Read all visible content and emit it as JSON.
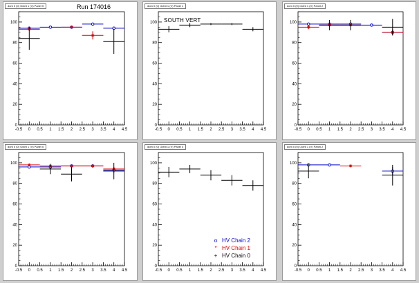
{
  "run_label": "Run 174016",
  "region_label": "SOUTH VERT",
  "legend": [
    {
      "label": "HV Chain 2",
      "symbol": "o",
      "color": "#0000cc"
    },
    {
      "label": "HV Chain 1",
      "symbol": "*",
      "color": "#dd0000"
    },
    {
      "label": "HV Chain 0",
      "symbol": "+",
      "color": "#000000"
    }
  ],
  "colors": {
    "chain2": "#0000cc",
    "chain1": "#dd0000",
    "chain0": "#000000"
  },
  "chart_data": [
    {
      "type": "scatter",
      "title": "dom 0 (0) Octnt 1 (V) Panel 0",
      "xlim": [
        -0.5,
        4.5
      ],
      "ylim": [
        0,
        110
      ],
      "xticks": [
        -0.5,
        0,
        0.5,
        1,
        1.5,
        2,
        2.5,
        3,
        3.5,
        4,
        4.5
      ],
      "yticks": [
        0,
        20,
        40,
        60,
        80,
        100
      ],
      "series": [
        {
          "chain": 2,
          "points": [
            {
              "x": 0,
              "y": 94,
              "err": 1
            },
            {
              "x": 1,
              "y": 95,
              "err": 1
            },
            {
              "x": 2,
              "y": 95,
              "err": 1
            },
            {
              "x": 3,
              "y": 98,
              "err": 1
            },
            {
              "x": 4,
              "y": 94,
              "err": 1
            }
          ]
        },
        {
          "chain": 1,
          "points": [
            {
              "x": 0,
              "y": 93,
              "err": 1
            },
            {
              "x": 2,
              "y": 95,
              "err": 1
            },
            {
              "x": 3,
              "y": 87,
              "err": 4
            }
          ]
        },
        {
          "chain": 0,
          "points": [
            {
              "x": 0,
              "y": 84,
              "err": 11
            },
            {
              "x": 4,
              "y": 81,
              "err": 12
            }
          ]
        }
      ]
    },
    {
      "type": "scatter",
      "title": "dom 0 (0) Octnt 1 (V) Panel 1",
      "xlim": [
        -0.5,
        4.5
      ],
      "ylim": [
        0,
        110
      ],
      "xticks": [
        -0.5,
        0,
        0.5,
        1,
        1.5,
        2,
        2.5,
        3,
        3.5,
        4,
        4.5
      ],
      "yticks": [
        0,
        20,
        40,
        60,
        80,
        100
      ],
      "series": [
        {
          "chain": 0,
          "points": [
            {
              "x": 0,
              "y": 93,
              "err": 3
            },
            {
              "x": 1,
              "y": 97,
              "err": 2
            },
            {
              "x": 2,
              "y": 98,
              "err": 1
            },
            {
              "x": 3,
              "y": 98,
              "err": 1
            },
            {
              "x": 4,
              "y": 93,
              "err": 2
            }
          ]
        }
      ]
    },
    {
      "type": "scatter",
      "title": "dom 0 (0) Octnt 1 (V) Panel 2",
      "xlim": [
        -0.5,
        4.5
      ],
      "ylim": [
        0,
        110
      ],
      "xticks": [
        -0.5,
        0,
        0.5,
        1,
        1.5,
        2,
        2.5,
        3,
        3.5,
        4,
        4.5
      ],
      "yticks": [
        0,
        20,
        40,
        60,
        80,
        100
      ],
      "series": [
        {
          "chain": 2,
          "points": [
            {
              "x": 0,
              "y": 98,
              "err": 1
            },
            {
              "x": 1,
              "y": 98,
              "err": 1
            },
            {
              "x": 2,
              "y": 98,
              "err": 1
            },
            {
              "x": 3,
              "y": 97,
              "err": 1
            },
            {
              "x": 4,
              "y": 90,
              "err": 3
            }
          ]
        },
        {
          "chain": 1,
          "points": [
            {
              "x": 0,
              "y": 95,
              "err": 2
            },
            {
              "x": 1,
              "y": 97,
              "err": 1
            },
            {
              "x": 2,
              "y": 97,
              "err": 1
            },
            {
              "x": 4,
              "y": 90,
              "err": 2
            }
          ]
        },
        {
          "chain": 0,
          "points": [
            {
              "x": 1,
              "y": 97,
              "err": 5
            },
            {
              "x": 2,
              "y": 97,
              "err": 5
            },
            {
              "x": 4,
              "y": 95,
              "err": 8
            }
          ]
        }
      ]
    },
    {
      "type": "scatter",
      "title": "dom 0 (0) Octnt 1 (V) Panel 0",
      "xlim": [
        -0.5,
        4.5
      ],
      "ylim": [
        0,
        110
      ],
      "xticks": [
        -0.5,
        0,
        0.5,
        1,
        1.5,
        2,
        2.5,
        3,
        3.5,
        4,
        4.5
      ],
      "yticks": [
        0,
        20,
        40,
        60,
        80,
        100
      ],
      "series": [
        {
          "chain": 2,
          "points": [
            {
              "x": 0,
              "y": 96,
              "err": 1
            },
            {
              "x": 1,
              "y": 96,
              "err": 2
            },
            {
              "x": 2,
              "y": 97,
              "err": 1
            },
            {
              "x": 3,
              "y": 97,
              "err": 1
            },
            {
              "x": 4,
              "y": 93,
              "err": 3
            }
          ]
        },
        {
          "chain": 1,
          "points": [
            {
              "x": 0,
              "y": 98,
              "err": 1
            },
            {
              "x": 1,
              "y": 97,
              "err": 1
            },
            {
              "x": 2,
              "y": 97,
              "err": 1
            },
            {
              "x": 3,
              "y": 97,
              "err": 1
            },
            {
              "x": 4,
              "y": 94,
              "err": 2
            }
          ]
        },
        {
          "chain": 0,
          "points": [
            {
              "x": 1,
              "y": 94,
              "err": 5
            },
            {
              "x": 2,
              "y": 89,
              "err": 7
            },
            {
              "x": 4,
              "y": 92,
              "err": 8
            }
          ]
        }
      ]
    },
    {
      "type": "scatter",
      "title": "dom 0 (0) Octnt 1 (V) Panel 4",
      "xlim": [
        -0.5,
        4.5
      ],
      "ylim": [
        0,
        110
      ],
      "xticks": [
        -0.5,
        0,
        0.5,
        1,
        1.5,
        2,
        2.5,
        3,
        3.5,
        4,
        4.5
      ],
      "yticks": [
        0,
        20,
        40,
        60,
        80,
        100
      ],
      "series": [
        {
          "chain": 0,
          "points": [
            {
              "x": 0,
              "y": 91,
              "err": 5
            },
            {
              "x": 1,
              "y": 94,
              "err": 4
            },
            {
              "x": 2,
              "y": 88,
              "err": 5
            },
            {
              "x": 3,
              "y": 83,
              "err": 5
            },
            {
              "x": 4,
              "y": 78,
              "err": 5
            }
          ]
        }
      ]
    },
    {
      "type": "scatter",
      "title": "dom 0 (0) Octnt 1 (V) Panel 2",
      "xlim": [
        -0.5,
        4.5
      ],
      "ylim": [
        0,
        110
      ],
      "xticks": [
        -0.5,
        0,
        0.5,
        1,
        1.5,
        2,
        2.5,
        3,
        3.5,
        4,
        4.5
      ],
      "yticks": [
        0,
        20,
        40,
        60,
        80,
        100
      ],
      "series": [
        {
          "chain": 2,
          "points": [
            {
              "x": 0,
              "y": 98,
              "err": 1
            },
            {
              "x": 1,
              "y": 98,
              "err": 1
            },
            {
              "x": 4,
              "y": 92,
              "err": 4
            }
          ]
        },
        {
          "chain": 1,
          "points": [
            {
              "x": 2,
              "y": 97,
              "err": 1
            }
          ]
        },
        {
          "chain": 0,
          "points": [
            {
              "x": 0,
              "y": 92,
              "err": 7
            },
            {
              "x": 4,
              "y": 88,
              "err": 10
            }
          ]
        }
      ]
    }
  ]
}
